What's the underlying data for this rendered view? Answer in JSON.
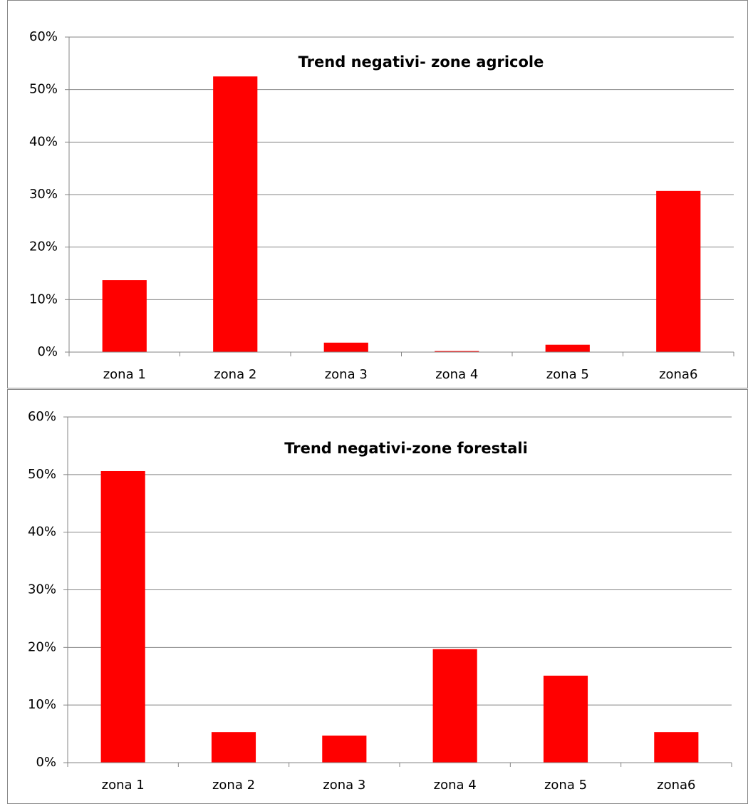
{
  "chart_data": [
    {
      "type": "bar",
      "title": "Trend negativi- zone agricole",
      "categories": [
        "zona 1",
        "zona 2",
        "zona 3",
        "zona 4",
        "zona 5",
        "zona6"
      ],
      "values": [
        13.7,
        52.5,
        1.8,
        0.2,
        1.4,
        30.7
      ],
      "color": "#ff0000",
      "ylim": [
        0,
        60
      ],
      "yticks": [
        {
          "value": 0,
          "label": "0%"
        },
        {
          "value": 10,
          "label": "10%"
        },
        {
          "value": 20,
          "label": "20%"
        },
        {
          "value": 30,
          "label": "30%"
        },
        {
          "value": 40,
          "label": "40%"
        },
        {
          "value": 50,
          "label": "50%"
        },
        {
          "value": 60,
          "label": "60%"
        }
      ],
      "grid": true
    },
    {
      "type": "bar",
      "title": "Trend negativi-zone forestali",
      "categories": [
        "zona 1",
        "zona 2",
        "zona 3",
        "zona 4",
        "zona 5",
        "zona6"
      ],
      "values": [
        50.6,
        5.3,
        4.7,
        19.7,
        15.1,
        5.3
      ],
      "color": "#ff0000",
      "ylim": [
        0,
        60
      ],
      "yticks": [
        {
          "value": 0,
          "label": "0%"
        },
        {
          "value": 10,
          "label": "10%"
        },
        {
          "value": 20,
          "label": "20%"
        },
        {
          "value": 30,
          "label": "30%"
        },
        {
          "value": 40,
          "label": "40%"
        },
        {
          "value": 50,
          "label": "50%"
        },
        {
          "value": 60,
          "label": "60%"
        }
      ],
      "grid": true
    }
  ]
}
